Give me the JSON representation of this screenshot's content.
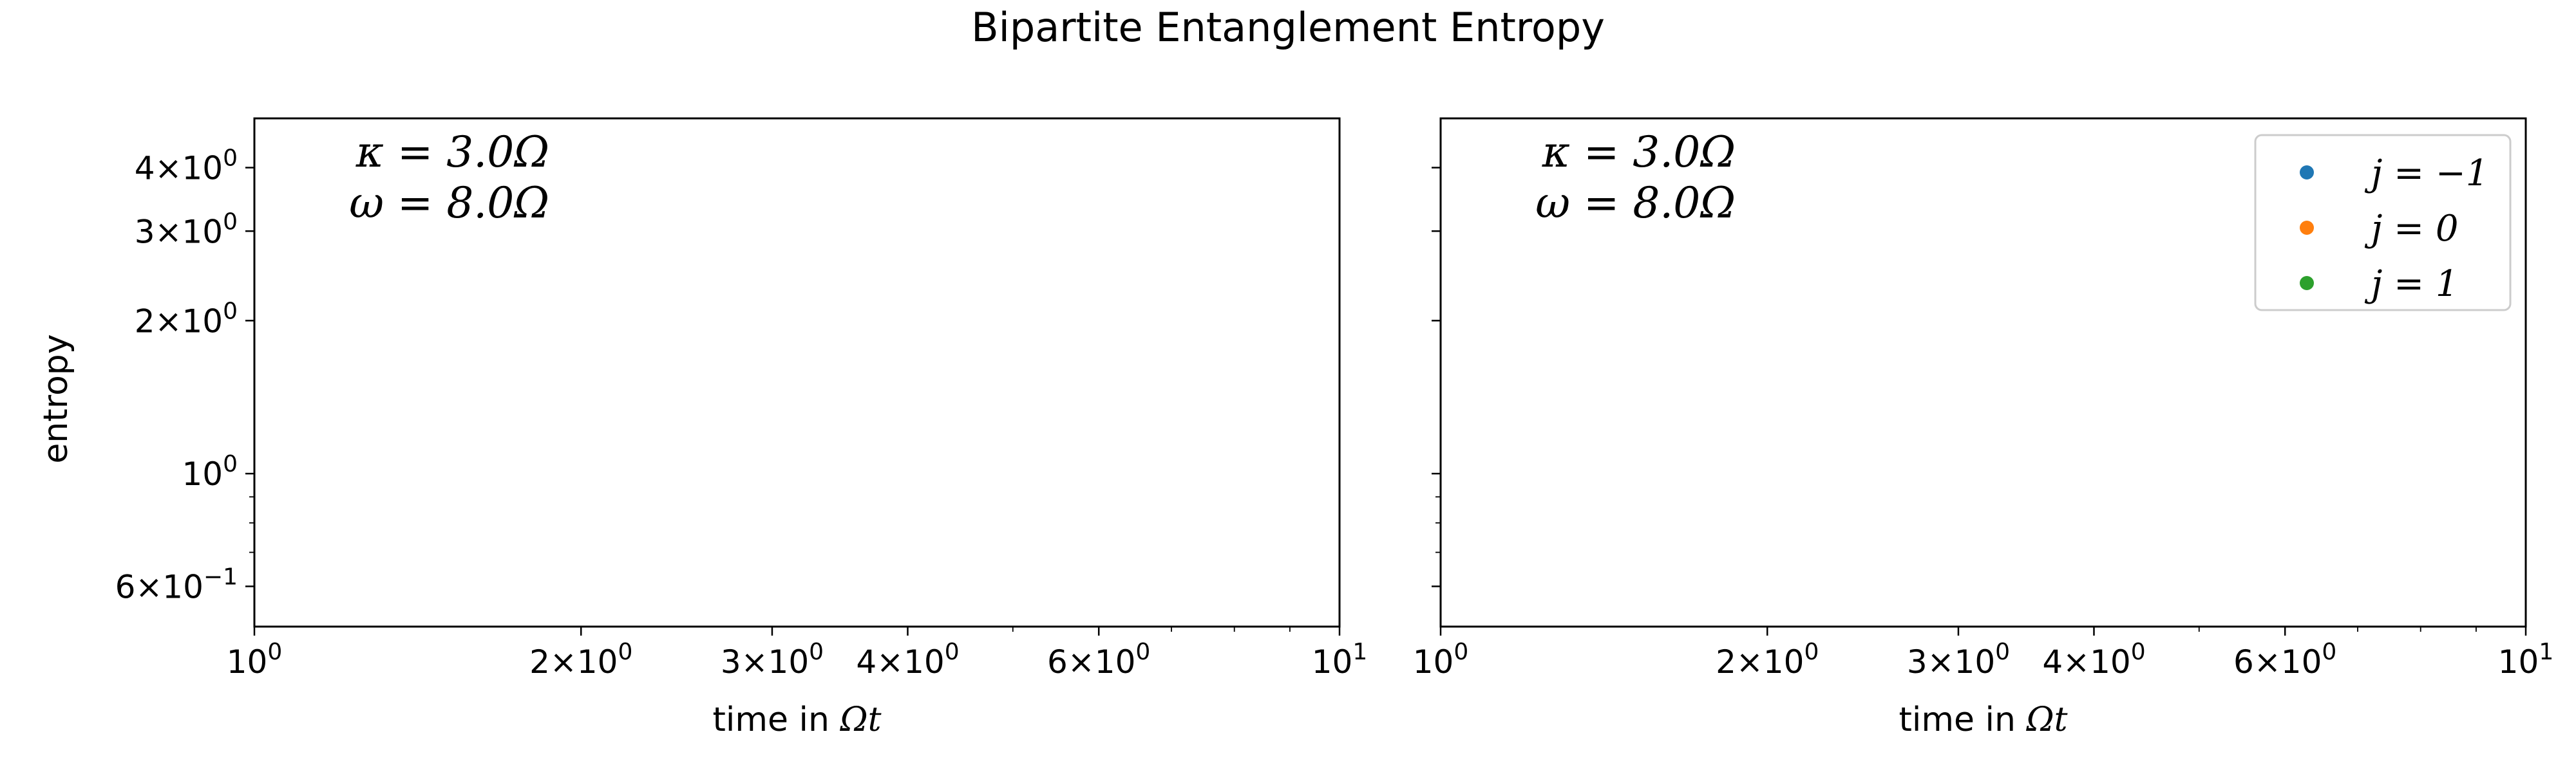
{
  "title": "Bipartite Entanglement Entropy",
  "ylabel": "entropy",
  "xlabel_prefix": "time in ",
  "xlabel_math": "Ωt",
  "chart_data": [
    {
      "type": "scatter",
      "panel": "left",
      "xscale": "log",
      "yscale": "log",
      "xlim": [
        1,
        10
      ],
      "ylim": [
        0.5,
        5
      ],
      "annotation_lines": [
        "κ = 3.0Ω",
        "ω = 8.0Ω"
      ],
      "xticks": [
        {
          "value": 1,
          "mant": "",
          "exp": "0"
        },
        {
          "value": 2,
          "mant": "2×",
          "exp": "0"
        },
        {
          "value": 3,
          "mant": "3×",
          "exp": "0"
        },
        {
          "value": 4,
          "mant": "4×",
          "exp": "0"
        },
        {
          "value": 6,
          "mant": "6×",
          "exp": "0"
        },
        {
          "value": 10,
          "mant": "",
          "exp": "1"
        }
      ],
      "yticks": [
        {
          "value": 0.6,
          "mant": "6×",
          "exp": "−1"
        },
        {
          "value": 1,
          "mant": "",
          "exp": "0"
        },
        {
          "value": 2,
          "mant": "2×",
          "exp": "0"
        },
        {
          "value": 3,
          "mant": "3×",
          "exp": "0"
        },
        {
          "value": 4,
          "mant": "4×",
          "exp": "0"
        }
      ],
      "series": []
    },
    {
      "type": "scatter",
      "panel": "right",
      "xscale": "log",
      "yscale": "log",
      "xlim": [
        1,
        10
      ],
      "ylim": [
        0.5,
        5
      ],
      "annotation_lines": [
        "κ = 3.0Ω",
        "ω = 8.0Ω"
      ],
      "xticks": [
        {
          "value": 1,
          "mant": "",
          "exp": "0"
        },
        {
          "value": 2,
          "mant": "2×",
          "exp": "0"
        },
        {
          "value": 3,
          "mant": "3×",
          "exp": "0"
        },
        {
          "value": 4,
          "mant": "4×",
          "exp": "0"
        },
        {
          "value": 6,
          "mant": "6×",
          "exp": "0"
        },
        {
          "value": 10,
          "mant": "",
          "exp": "1"
        }
      ],
      "legend": {
        "placement": "top-right",
        "entries": [
          {
            "label": "j = −1",
            "color": "#1f77b4"
          },
          {
            "label": "j = 0",
            "color": "#ff7f0e"
          },
          {
            "label": "j = 1",
            "color": "#2ca02c"
          }
        ]
      },
      "series": []
    }
  ]
}
